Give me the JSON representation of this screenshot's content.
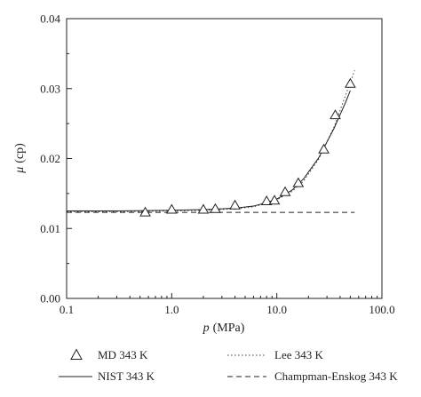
{
  "chart_data": {
    "type": "line",
    "x_scale": "log",
    "xlim": [
      0.1,
      100.0
    ],
    "ylim": [
      0.0,
      0.04
    ],
    "x_ticks": [
      "0.1",
      "1.0",
      "10.0",
      "100.0"
    ],
    "y_ticks": [
      "0.00",
      "0.01",
      "0.02",
      "0.03",
      "0.04"
    ],
    "xlabel": {
      "symbol": "p",
      "unit": "(MPa)"
    },
    "ylabel": {
      "symbol": "μ",
      "unit": "(cp)"
    },
    "grid": false,
    "legend_position": "bottom",
    "series": [
      {
        "name": "MD 343 K",
        "kind": "markers",
        "marker": "triangle-open",
        "x": [
          0.56,
          1.0,
          2.0,
          2.6,
          4.0,
          8.0,
          9.5,
          12.0,
          16.0,
          28.0,
          36.0,
          50.0
        ],
        "y": [
          0.0123,
          0.0127,
          0.0127,
          0.0128,
          0.0133,
          0.0139,
          0.014,
          0.0152,
          0.0165,
          0.0213,
          0.0262,
          0.0307
        ]
      },
      {
        "name": "Lee 343 K",
        "kind": "line",
        "dash": "dotted",
        "x": [
          0.1,
          0.3,
          1.0,
          2.0,
          4.0,
          6.0,
          8.0,
          10.0,
          14.0,
          18.0,
          25.0,
          35.0,
          45.0,
          55.0
        ],
        "y": [
          0.0124,
          0.0124,
          0.0125,
          0.0126,
          0.0128,
          0.0131,
          0.0136,
          0.0141,
          0.0153,
          0.0168,
          0.0199,
          0.0245,
          0.029,
          0.0326
        ]
      },
      {
        "name": "NIST 343 K",
        "kind": "line",
        "dash": "solid",
        "x": [
          0.1,
          0.3,
          1.0,
          2.0,
          4.0,
          6.0,
          8.0,
          10.0,
          14.0,
          18.0,
          25.0,
          35.0,
          45.0,
          50.0
        ],
        "y": [
          0.0125,
          0.0125,
          0.0126,
          0.0127,
          0.0129,
          0.0132,
          0.0137,
          0.0142,
          0.0155,
          0.0171,
          0.0201,
          0.0243,
          0.028,
          0.0297
        ]
      },
      {
        "name": "Champman-Enskog 343 K",
        "kind": "line",
        "dash": "dashed",
        "x": [
          0.1,
          55.0
        ],
        "y": [
          0.0123,
          0.0123
        ]
      }
    ]
  }
}
